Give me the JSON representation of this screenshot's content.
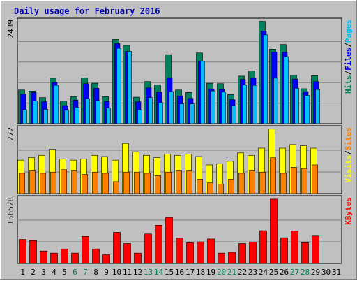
{
  "chart_data": {
    "type": "bar",
    "title": "Daily usage for February 2016",
    "x": [
      "1",
      "2",
      "3",
      "4",
      "5",
      "6",
      "7",
      "8",
      "9",
      "10",
      "11",
      "12",
      "13",
      "14",
      "15",
      "16",
      "17",
      "18",
      "19",
      "20",
      "21",
      "22",
      "23",
      "24",
      "25",
      "26",
      "27",
      "28",
      "29",
      "30",
      "31"
    ],
    "weekend_days": [
      6,
      7,
      13,
      14,
      20,
      21,
      27,
      28
    ],
    "panels": [
      {
        "id": "hits",
        "ymax_label": "2439",
        "ymax": 2439,
        "axis_labels": [
          {
            "text": "Hits",
            "color": "#00805c"
          },
          {
            "text": "Files",
            "color": "#0000ff"
          },
          {
            "text": "Pages",
            "color": "#00c0ff"
          }
        ],
        "series": [
          {
            "name": "Hits",
            "color": "#00805c",
            "values": [
              800,
              775,
              620,
              1080,
              535,
              640,
              1090,
              960,
              640,
              2000,
              1860,
              630,
              1000,
              920,
              1640,
              800,
              740,
              1680,
              960,
              950,
              690,
              1130,
              1250,
              2430,
              1770,
              1880,
              1150,
              830,
              1140,
              0,
              0
            ]
          },
          {
            "name": "Files",
            "color": "#0000ff",
            "values": [
              700,
              740,
              520,
              980,
              430,
              560,
              950,
              840,
              530,
              1900,
              1720,
              520,
              850,
              750,
              1080,
              660,
              600,
              1480,
              820,
              810,
              570,
              1050,
              1080,
              2200,
              1700,
              1700,
              1060,
              760,
              1000,
              0,
              0
            ]
          },
          {
            "name": "Pages",
            "color": "#00c0ff",
            "values": [
              330,
              540,
              340,
              910,
              320,
              390,
              590,
              550,
              370,
              1790,
              1720,
              330,
              620,
              500,
              760,
              470,
              470,
              1480,
              780,
              750,
              420,
              920,
              910,
              2110,
              1080,
              1590,
              840,
              670,
              810,
              0,
              0
            ]
          }
        ]
      },
      {
        "id": "visits",
        "ymax_label": "272",
        "ymax": 272,
        "axis_labels": [
          {
            "text": "Visits",
            "color": "#ffff00"
          },
          {
            "text": "Sites",
            "color": "#ff8000"
          }
        ],
        "series": [
          {
            "name": "Visits",
            "color": "#ffff00",
            "values": [
              140,
              150,
              160,
              185,
              145,
              140,
              145,
              160,
              155,
              140,
              210,
              175,
              160,
              150,
              165,
              160,
              165,
              155,
              120,
              125,
              135,
              170,
              160,
              190,
              270,
              190,
              205,
              200,
              190,
              0,
              0
            ]
          },
          {
            "name": "Sites",
            "color": "#ff8000",
            "values": [
              85,
              95,
              85,
              90,
              100,
              95,
              80,
              90,
              85,
              50,
              90,
              90,
              85,
              75,
              90,
              95,
              95,
              60,
              45,
              40,
              60,
              85,
              95,
              90,
              150,
              85,
              110,
              105,
              120,
              0,
              0
            ]
          }
        ]
      },
      {
        "id": "kbytes",
        "ymax_label": "156528",
        "ymax": 156528,
        "axis_labels": [
          {
            "text": "KBytes",
            "color": "#ff0000"
          }
        ],
        "series": [
          {
            "name": "KBytes",
            "color": "#ff0000",
            "values": [
              58000,
              55000,
              30000,
              25000,
              35000,
              25000,
              65000,
              35000,
              21000,
              75000,
              48000,
              25000,
              71000,
              92000,
              111000,
              61000,
              50000,
              52000,
              59000,
              25000,
              27000,
              48000,
              51000,
              79000,
              155000,
              62000,
              78000,
              50000,
              66000,
              0,
              0
            ]
          }
        ]
      }
    ]
  }
}
